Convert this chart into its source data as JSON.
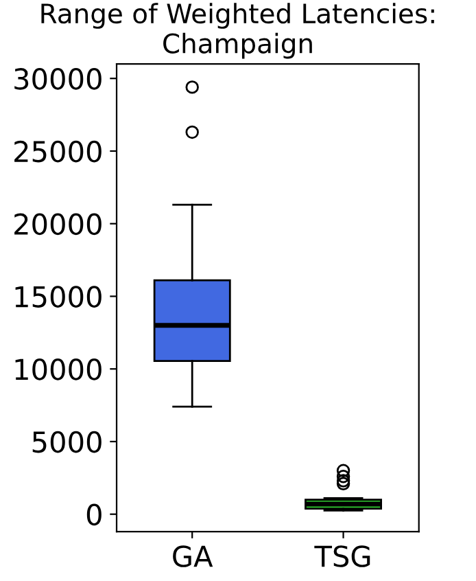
{
  "chart_data": {
    "type": "box",
    "title": "Range of Weighted Latencies:\nChampaign",
    "categories": [
      "GA",
      "TSG"
    ],
    "colors": [
      "#4169e1",
      "#32cd32"
    ],
    "boxes": [
      {
        "low": 7400,
        "q1": 10550,
        "median": 13000,
        "q3": 16100,
        "high": 21300,
        "outliers": [
          26300,
          29400
        ]
      },
      {
        "low": 250,
        "q1": 380,
        "median": 700,
        "q3": 1000,
        "high": 1100,
        "outliers": [
          2100,
          2300,
          2600,
          3000
        ]
      }
    ],
    "ylim": [
      -1200,
      31000
    ],
    "yticks": [
      0,
      5000,
      10000,
      15000,
      20000,
      25000,
      30000
    ],
    "grid": false
  }
}
